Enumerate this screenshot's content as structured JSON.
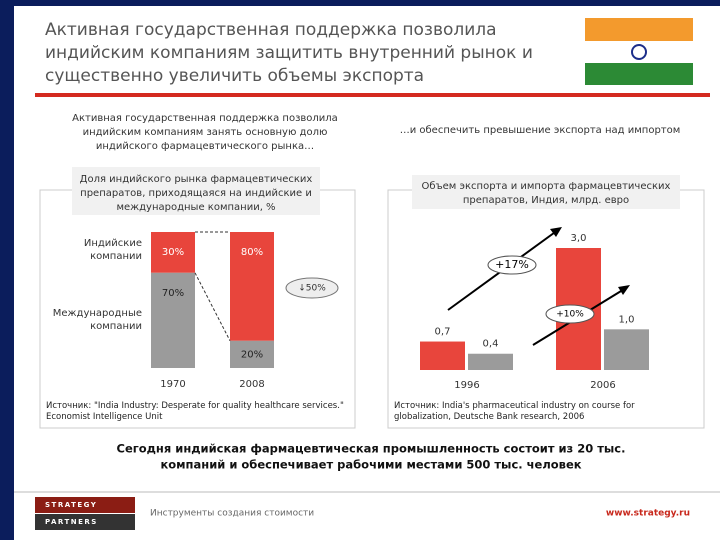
{
  "header": {
    "title_lines": [
      "Активная государственная поддержка позволила",
      "индийским компаниям защитить внутренний рынок и",
      "существенно увеличить объемы экспорта"
    ]
  },
  "left_caption": [
    "Активная государственная поддержка позволила",
    "индийским компаниям занять основную долю",
    "индийского фармацевтического рынка…"
  ],
  "right_caption": "…и обеспечить превышение экспорта над импортом",
  "chart_data": [
    {
      "type": "stacked_bar",
      "title_lines": [
        "Доля индийского рынка фармацевтических",
        "препаратов, приходящаяся на индийские и",
        "международные компании, %"
      ],
      "categories": [
        "1970",
        "2008"
      ],
      "series": [
        {
          "name": "Индийские компании",
          "color": "#e8453c",
          "values": [
            30,
            80
          ],
          "value_labels": [
            "30%",
            "80%"
          ]
        },
        {
          "name": "Международные компании",
          "color": "#9b9b9b",
          "values": [
            70,
            20
          ],
          "value_labels": [
            "70%",
            "20%"
          ]
        }
      ],
      "annotation": "↓50%",
      "source": "Источник: \"India Industry: Desperate for quality healthcare services.\" Economist Intelligence Unit"
    },
    {
      "type": "bar",
      "title_lines": [
        "Объем экспорта и импорта фармацевтических",
        "препаратов, Индия, млрд. евро"
      ],
      "categories": [
        "1996",
        "2006"
      ],
      "series": [
        {
          "color": "#e8453c",
          "values": [
            0.7,
            3.0
          ],
          "value_labels": [
            "0,7",
            "3,0"
          ]
        },
        {
          "color": "#9b9b9b",
          "values": [
            0.4,
            1.0
          ],
          "value_labels": [
            "0,4",
            "1,0"
          ]
        }
      ],
      "annotations": [
        "+17%",
        "+10%"
      ],
      "source": "Источник: India's pharmaceutical industry on course for globalization, Deutsche Bank research, 2006"
    }
  ],
  "conclusion": [
    "Сегодня индийская фармацевтическая промышленность состоит из 20 тыс.",
    "компаний и обеспечивает рабочими местами 500 тыс. человек"
  ],
  "footer": {
    "logo": [
      "STRATEGY",
      "PARTNERS"
    ],
    "tagline": "Инструменты создания стоимости",
    "url": "www.strategy.ru"
  }
}
